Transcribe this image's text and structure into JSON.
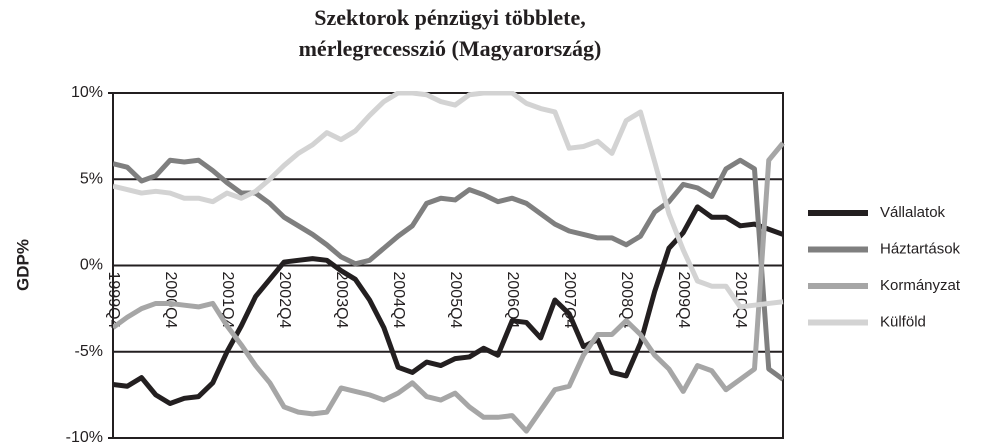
{
  "chart_data": {
    "type": "line",
    "title": [
      "Szektorok pénzügyi többlete,",
      "mérlegrecesszió (Magyarország)"
    ],
    "y_label": "GDP%",
    "categories": [
      "1999Q4",
      null,
      null,
      null,
      "2000Q4",
      null,
      null,
      null,
      "2001Q4",
      null,
      null,
      null,
      "2002Q4",
      null,
      null,
      null,
      "2003Q4",
      null,
      null,
      null,
      "2004Q4",
      null,
      null,
      null,
      "2005Q4",
      null,
      null,
      null,
      "2006Q4",
      null,
      null,
      null,
      "2007Q4",
      null,
      null,
      null,
      "2008Q4",
      null,
      null,
      null,
      "2009Q4",
      null,
      null,
      null,
      "2010Q4",
      null,
      null,
      null
    ],
    "ylim": [
      -10,
      10
    ],
    "yticks": [
      {
        "value": -10,
        "label": "-10%"
      },
      {
        "value": -5,
        "label": "-5%"
      },
      {
        "value": 0,
        "label": "0%"
      },
      {
        "value": 5,
        "label": "5%"
      },
      {
        "value": 10,
        "label": "10%"
      }
    ],
    "grid": true,
    "legend": "right",
    "series": [
      {
        "name": "Vállalatok",
        "color": "#231f20",
        "values": [
          -6.9,
          -7,
          -6.5,
          -7.5,
          -8,
          -7.7,
          -7.6,
          -6.8,
          -5,
          -3.5,
          -1.8,
          -0.8,
          0.2,
          0.3,
          0.4,
          0.3,
          -0.3,
          -0.8,
          -2,
          -3.6,
          -5.9,
          -6.2,
          -5.6,
          -5.8,
          -5.4,
          -5.3,
          -4.8,
          -5.2,
          -3.2,
          -3.3,
          -4.2,
          -2,
          -2.8,
          -4.7,
          -4.3,
          -6.2,
          -6.4,
          -4.5,
          -1.5,
          1,
          1.9,
          3.4,
          2.8,
          2.8,
          2.3,
          2.4,
          2.1,
          1.8
        ]
      },
      {
        "name": "Háztartások",
        "color": "#7f7f7f",
        "values": [
          5.9,
          5.7,
          4.9,
          5.2,
          6.1,
          6,
          6.1,
          5.5,
          4.8,
          4.2,
          4.2,
          3.6,
          2.8,
          2.3,
          1.8,
          1.2,
          0.5,
          0.1,
          0.3,
          1,
          1.7,
          2.3,
          3.6,
          3.9,
          3.8,
          4.4,
          4.1,
          3.7,
          3.9,
          3.6,
          3.0,
          2.4,
          2,
          1.8,
          1.6,
          1.6,
          1.2,
          1.7,
          3.1,
          3.7,
          4.7,
          4.5,
          4.0,
          5.6,
          6.1,
          5.6,
          -6,
          -6.6
        ]
      },
      {
        "name": "Kormányzat",
        "color": "#a6a6a6",
        "values": [
          -3.6,
          -3,
          -2.5,
          -2.2,
          -2.2,
          -2.3,
          -2.4,
          -2.2,
          -3.5,
          -4.6,
          -5.8,
          -6.8,
          -8.2,
          -8.5,
          -8.6,
          -8.5,
          -7.1,
          -7.3,
          -7.5,
          -7.8,
          -7.4,
          -6.8,
          -7.6,
          -7.8,
          -7.4,
          -8.2,
          -8.8,
          -8.8,
          -8.7,
          -9.6,
          -8.4,
          -7.2,
          -7,
          -5.2,
          -4,
          -4,
          -3.2,
          -4,
          -5.2,
          -6,
          -7.3,
          -5.8,
          -6.1,
          -7.2,
          -6.6,
          -6,
          6.1,
          7.1
        ]
      },
      {
        "name": "Külföld",
        "color": "#d3d3d3",
        "values": [
          4.6,
          4.4,
          4.2,
          4.3,
          4.2,
          3.9,
          3.9,
          3.7,
          4.2,
          3.9,
          4.3,
          5,
          5.8,
          6.5,
          7,
          7.7,
          7.3,
          7.8,
          8.7,
          9.5,
          10,
          10,
          9.9,
          9.5,
          9.3,
          9.9,
          10,
          10,
          10,
          9.4,
          9.1,
          8.9,
          6.8,
          6.9,
          7.2,
          6.5,
          8.4,
          8.9,
          6,
          3,
          0.9,
          -0.9,
          -1.2,
          -1.2,
          -2.4,
          -2.3,
          -2.2,
          -2.1
        ]
      }
    ]
  }
}
